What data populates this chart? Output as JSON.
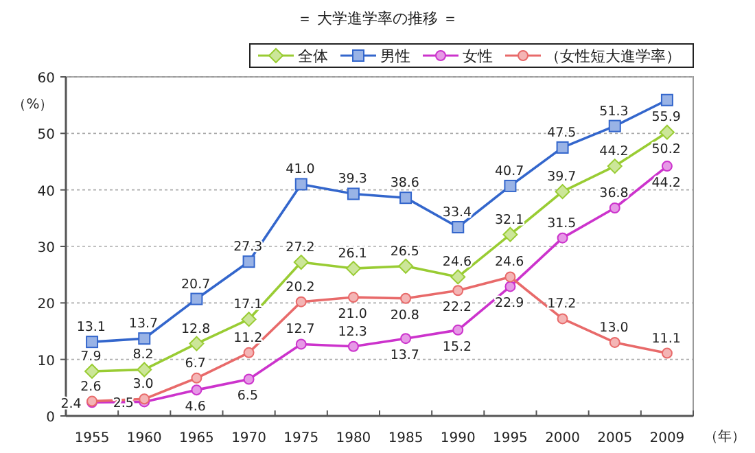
{
  "chart_data": {
    "type": "line",
    "title": "＝ 大学進学率の推移 ＝",
    "ylabel": "（%）",
    "xlabel": "（年）",
    "categories": [
      "1955",
      "1960",
      "1965",
      "1970",
      "1975",
      "1980",
      "1985",
      "1990",
      "1995",
      "2000",
      "2005",
      "2009"
    ],
    "ylim": [
      0,
      60
    ],
    "yticks": [
      0,
      10,
      20,
      30,
      40,
      50,
      60
    ],
    "grid": "y",
    "legend": "top right",
    "series": [
      {
        "name": "全体",
        "color": "#99cc33",
        "marker": "diamond",
        "values": [
          7.9,
          8.2,
          12.8,
          17.1,
          27.2,
          26.1,
          26.5,
          24.6,
          32.1,
          39.7,
          44.2,
          50.2
        ],
        "value_labels": [
          "7.9",
          "8.2",
          "12.8",
          "17.1",
          "27.2",
          "26.1",
          "26.5",
          "24.6",
          "32.1",
          "39.7",
          "44.2",
          "50.2"
        ]
      },
      {
        "name": "男性",
        "color": "#3366cc",
        "marker": "square",
        "values": [
          13.1,
          13.7,
          20.7,
          27.3,
          41.0,
          39.3,
          38.6,
          33.4,
          40.7,
          47.5,
          51.3,
          55.9
        ],
        "value_labels": [
          "13.1",
          "13.7",
          "20.7",
          "27.3",
          "41.0",
          "39.3",
          "38.6",
          "33.4",
          "40.7",
          "47.5",
          "51.3",
          "55.9"
        ]
      },
      {
        "name": "女性",
        "color": "#cc33cc",
        "marker": "circle",
        "values": [
          2.4,
          2.5,
          4.6,
          6.5,
          12.7,
          12.3,
          13.7,
          15.2,
          22.9,
          31.5,
          36.8,
          44.2
        ],
        "value_labels": [
          "2.4",
          "2.5",
          "4.6",
          "6.5",
          "12.7",
          "12.3",
          "13.7",
          "15.2",
          "22.9",
          "31.5",
          "36.8",
          "44.2"
        ]
      },
      {
        "name": "（女性短大進学率）",
        "color": "#e86a6a",
        "marker": "circle",
        "values": [
          2.6,
          3.0,
          6.7,
          11.2,
          20.2,
          21.0,
          20.8,
          22.2,
          24.6,
          17.2,
          13.0,
          11.1
        ],
        "value_labels": [
          "2.6",
          "3.0",
          "6.7",
          "11.2",
          "20.2",
          "21.0",
          "20.8",
          "22.2",
          "24.6",
          "17.2",
          "13.0",
          "11.1"
        ]
      }
    ]
  }
}
